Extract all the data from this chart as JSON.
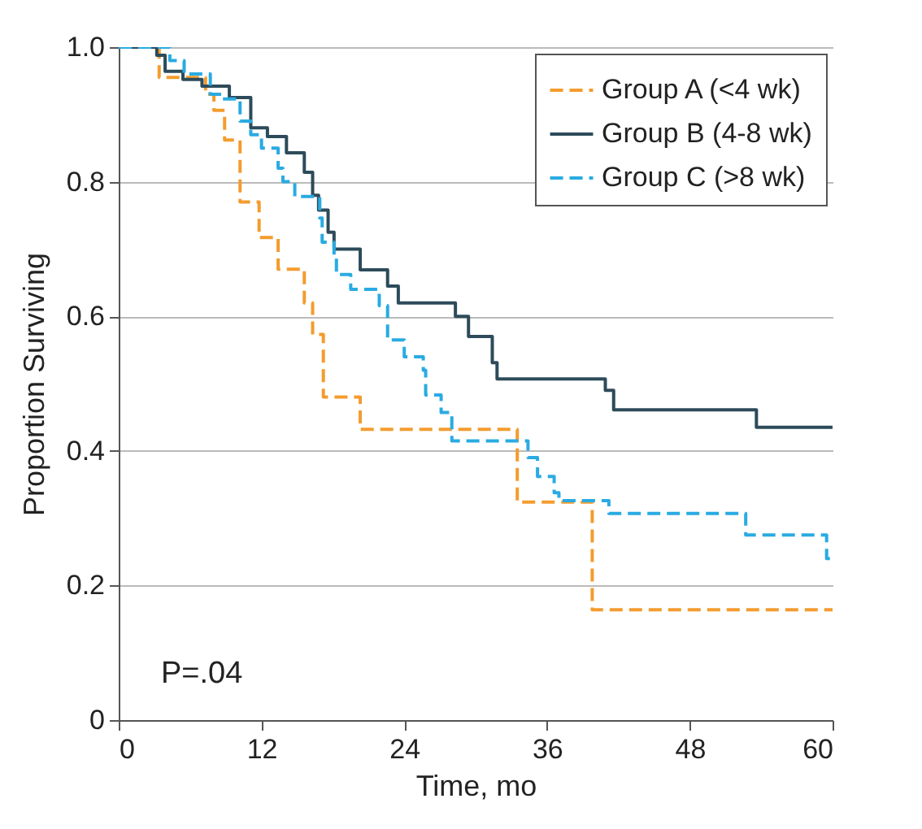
{
  "chart_data": {
    "type": "step",
    "xlabel": "Time, mo",
    "ylabel": "Proportion Surviving",
    "annotations": [
      "P=.04"
    ],
    "xlim": [
      0,
      60
    ],
    "xticks": [
      0,
      12,
      24,
      36,
      48,
      60
    ],
    "ylim": [
      0,
      1
    ],
    "yticks": [
      0,
      {
        "value": 0.2,
        "label": "0.2"
      },
      {
        "value": 0.4,
        "label": "0.4"
      },
      {
        "value": 0.6,
        "label": "0.6"
      },
      {
        "value": 0.8,
        "label": "0.8"
      },
      {
        "value": 1,
        "label": "1.0"
      }
    ],
    "grid": "y",
    "legend": "top right",
    "marker": "none",
    "series": [
      {
        "name": "Group A (<4 wk)",
        "color": "#f39c2e",
        "line_style": "dashed",
        "x": [
          0,
          3.4,
          7.3,
          8.0,
          8.9,
          10.2,
          11.8,
          13.4,
          15.6,
          16.3,
          17.2,
          20.3,
          33.5,
          39.8,
          60
        ],
        "values": [
          1.0,
          0.955,
          0.93,
          0.906,
          0.862,
          0.77,
          0.717,
          0.67,
          0.62,
          0.573,
          0.48,
          0.432,
          0.324,
          0.164,
          0.164
        ]
      },
      {
        "name": "Group B (4-8 wk)",
        "color": "#2d4b5a",
        "line_style": "solid",
        "x": [
          0,
          3.2,
          3.9,
          5.4,
          7.0,
          9.3,
          11.1,
          12.5,
          14.1,
          15.6,
          16.3,
          16.8,
          17.6,
          18.1,
          20.3,
          22.6,
          23.5,
          28.3,
          29.4,
          31.4,
          31.8,
          40.9,
          41.6,
          53.6,
          60
        ],
        "values": [
          1.0,
          0.988,
          0.964,
          0.952,
          0.942,
          0.925,
          0.88,
          0.867,
          0.843,
          0.814,
          0.78,
          0.758,
          0.725,
          0.7,
          0.669,
          0.645,
          0.62,
          0.6,
          0.57,
          0.531,
          0.507,
          0.49,
          0.461,
          0.435,
          0.435
        ]
      },
      {
        "name": "Group C (>8 wk)",
        "color": "#29abe2",
        "line_style": "dashed",
        "x": [
          0,
          4.3,
          5.5,
          7.7,
          8.7,
          10.2,
          11.1,
          12.0,
          13.4,
          13.8,
          14.8,
          16.9,
          17.1,
          18.1,
          18.3,
          19.5,
          21.9,
          22.6,
          24.0,
          25.6,
          25.8,
          27.1,
          28.0,
          34.4,
          35.2,
          36.6,
          37.0,
          41.2,
          52.7,
          59.5,
          60
        ],
        "values": [
          1.0,
          0.98,
          0.96,
          0.93,
          0.923,
          0.89,
          0.87,
          0.85,
          0.82,
          0.8,
          0.778,
          0.746,
          0.71,
          0.69,
          0.662,
          0.64,
          0.616,
          0.565,
          0.54,
          0.52,
          0.483,
          0.457,
          0.415,
          0.39,
          0.362,
          0.338,
          0.326,
          0.307,
          0.275,
          0.24,
          0.24
        ]
      }
    ]
  }
}
